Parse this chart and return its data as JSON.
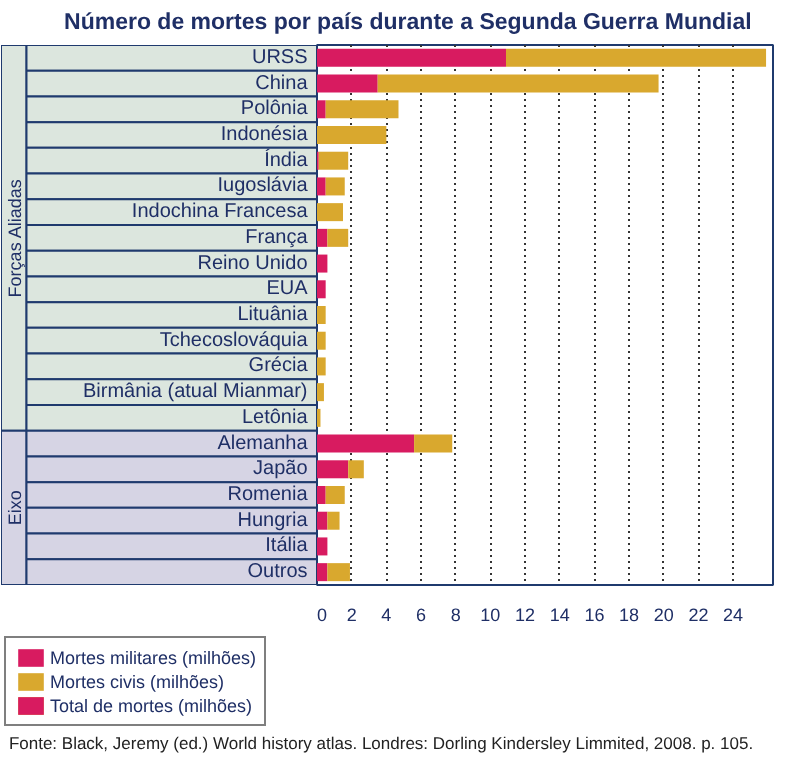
{
  "chart_data": {
    "type": "bar",
    "orientation": "horizontal",
    "stacked": true,
    "title": "Número de mortes por país durante a Segunda Guerra Mundial",
    "categories": [
      "URSS",
      "China",
      "Polônia",
      "Indonésia",
      "Índia",
      "Iugoslávia",
      "Indochina Francesa",
      "França",
      "Reino Unido",
      "EUA",
      "Lituânia",
      "Tchecoslováquia",
      "Grécia",
      "Birmânia (atual Mianmar)",
      "Letônia",
      "Alemanha",
      "Japão",
      "Romenia",
      "Hungria",
      "Itália",
      "Outros"
    ],
    "series": [
      {
        "name": "Mortes militares (milhões)",
        "color": "#d81b60",
        "values": [
          10.9,
          3.5,
          0.5,
          0,
          0.1,
          0.5,
          0,
          0.6,
          0.6,
          0.5,
          0,
          0,
          0,
          0,
          0,
          5.6,
          1.8,
          0.5,
          0.6,
          0.6,
          0.6
        ]
      },
      {
        "name": "Mortes civis (milhões)",
        "color": "#d9a82e",
        "values": [
          15.0,
          16.2,
          4.2,
          4.0,
          1.7,
          1.1,
          1.5,
          1.2,
          0,
          0,
          0.5,
          0.5,
          0.5,
          0.4,
          0.2,
          2.2,
          0.9,
          1.1,
          0.7,
          0,
          1.3
        ]
      }
    ],
    "xlim": [
      0,
      26.3
    ],
    "xticks": [
      0,
      2,
      4,
      6,
      8,
      10,
      12,
      14,
      16,
      18,
      20,
      22,
      24
    ],
    "grid": "x",
    "legend": "bottom left",
    "annotations": [
      "Forças Aliadas",
      "Eixo",
      "Total de mortes (milhões)",
      "Fonte: Black, Jeremy (ed.) World history atlas. Londres: Dorling Kindersley Limmited, 2008. p. 105."
    ]
  }
}
